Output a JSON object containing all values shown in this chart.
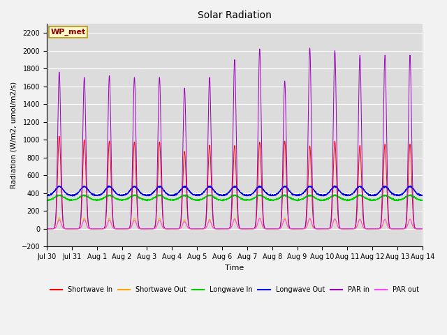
{
  "title": "Solar Radiation",
  "ylabel": "Radiation (W/m2, umol/m2/s)",
  "xlabel": "Time",
  "ylim": [
    -200,
    2300
  ],
  "yticks": [
    -200,
    0,
    200,
    400,
    600,
    800,
    1000,
    1200,
    1400,
    1600,
    1800,
    2000,
    2200
  ],
  "annotation_text": "WP_met",
  "annotation_color": "#8B0000",
  "annotation_bg": "#FFFACD",
  "annotation_border": "#B8960C",
  "plot_bg_color": "#DCDCDC",
  "fig_bg_color": "#F2F2F2",
  "line_colors": {
    "sw_in": "#FF0000",
    "sw_out": "#FFA500",
    "lw_in": "#00CC00",
    "lw_out": "#0000EE",
    "par_in": "#9900BB",
    "par_out": "#FF44FF"
  },
  "legend": [
    {
      "label": "Shortwave In",
      "color": "#FF0000"
    },
    {
      "label": "Shortwave Out",
      "color": "#FFA500"
    },
    {
      "label": "Longwave In",
      "color": "#00CC00"
    },
    {
      "label": "Longwave Out",
      "color": "#0000EE"
    },
    {
      "label": "PAR in",
      "color": "#9900BB"
    },
    {
      "label": "PAR out",
      "color": "#FF44FF"
    }
  ],
  "n_days": 15,
  "pts_per_day": 288,
  "sw_in_peaks": [
    1040,
    1000,
    985,
    975,
    975,
    870,
    940,
    935,
    975,
    985,
    930,
    985,
    935,
    950,
    950
  ],
  "sw_out_peaks": [
    125,
    122,
    120,
    118,
    118,
    100,
    108,
    120,
    122,
    122,
    112,
    112,
    108,
    108,
    108
  ],
  "par_in_peaks": [
    1760,
    1700,
    1720,
    1700,
    1700,
    1580,
    1700,
    1900,
    2020,
    1660,
    2030,
    2000,
    1950,
    1950,
    1950
  ],
  "par_out_peaks": [
    100,
    100,
    98,
    95,
    95,
    80,
    90,
    105,
    118,
    105,
    118,
    112,
    108,
    108,
    108
  ],
  "lw_in_base": 320,
  "lw_in_amp": 55,
  "lw_out_base": 375,
  "lw_out_amp": 100,
  "pulse_sigma": 0.065
}
